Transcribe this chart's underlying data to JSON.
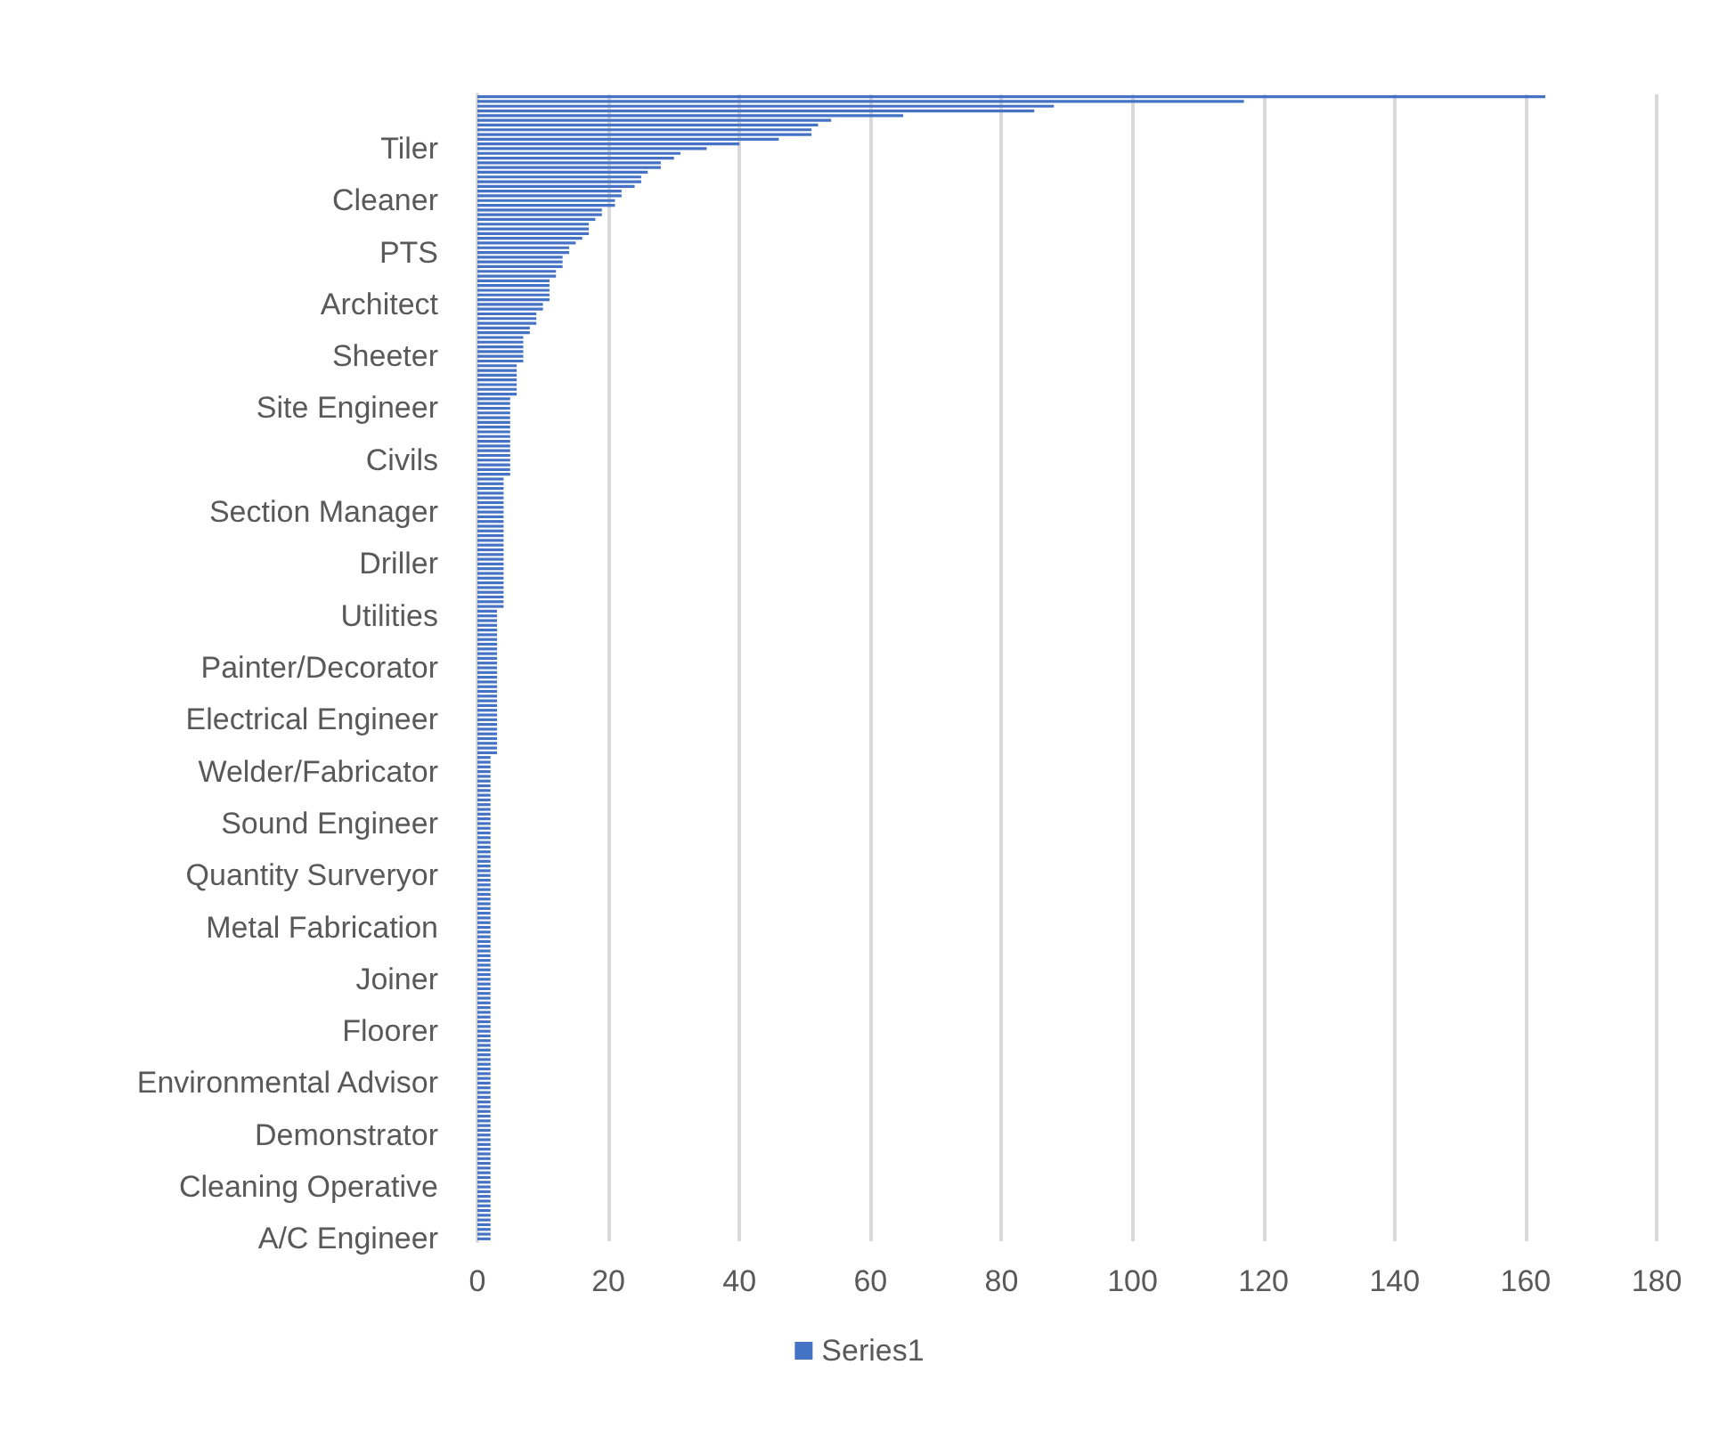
{
  "chart_data": {
    "type": "bar",
    "orientation": "horizontal",
    "categories": [
      null,
      null,
      null,
      null,
      null,
      null,
      null,
      null,
      null,
      null,
      null,
      "Tiler",
      null,
      null,
      null,
      null,
      null,
      null,
      null,
      null,
      null,
      null,
      "Cleaner",
      null,
      null,
      null,
      null,
      null,
      null,
      null,
      null,
      null,
      null,
      "PTS",
      null,
      null,
      null,
      null,
      null,
      null,
      null,
      null,
      null,
      null,
      "Architect",
      null,
      null,
      null,
      null,
      null,
      null,
      null,
      null,
      null,
      null,
      "Sheeter",
      null,
      null,
      null,
      null,
      null,
      null,
      null,
      null,
      null,
      null,
      "Site Engineer",
      null,
      null,
      null,
      null,
      null,
      null,
      null,
      null,
      null,
      null,
      "Civils",
      null,
      null,
      null,
      null,
      null,
      null,
      null,
      null,
      null,
      null,
      "Section Manager",
      null,
      null,
      null,
      null,
      null,
      null,
      null,
      null,
      null,
      null,
      "Driller",
      null,
      null,
      null,
      null,
      null,
      null,
      null,
      null,
      null,
      null,
      "Utilities",
      null,
      null,
      null,
      null,
      null,
      null,
      null,
      null,
      null,
      null,
      "Painter/Decorator",
      null,
      null,
      null,
      null,
      null,
      null,
      null,
      null,
      null,
      null,
      "Electrical Engineer",
      null,
      null,
      null,
      null,
      null,
      null,
      null,
      null,
      null,
      null,
      "Welder/Fabricator",
      null,
      null,
      null,
      null,
      null,
      null,
      null,
      null,
      null,
      null,
      "Sound Engineer",
      null,
      null,
      null,
      null,
      null,
      null,
      null,
      null,
      null,
      null,
      "Quantity Surveryor",
      null,
      null,
      null,
      null,
      null,
      null,
      null,
      null,
      null,
      null,
      "Metal Fabrication",
      null,
      null,
      null,
      null,
      null,
      null,
      null,
      null,
      null,
      null,
      "Joiner",
      null,
      null,
      null,
      null,
      null,
      null,
      null,
      null,
      null,
      null,
      "Floorer",
      null,
      null,
      null,
      null,
      null,
      null,
      null,
      null,
      null,
      null,
      "Environmental Advisor",
      null,
      null,
      null,
      null,
      null,
      null,
      null,
      null,
      null,
      null,
      "Demonstrator",
      null,
      null,
      null,
      null,
      null,
      null,
      null,
      null,
      null,
      null,
      "Cleaning Operative",
      null,
      null,
      null,
      null,
      null,
      null,
      null,
      null,
      null,
      null,
      "A/C Engineer"
    ],
    "series": [
      {
        "name": "Series1",
        "color": "#4472c4",
        "values": [
          163,
          117,
          88,
          85,
          65,
          54,
          52,
          51,
          51,
          46,
          40,
          35,
          31,
          30,
          28,
          28,
          26,
          25,
          25,
          24,
          22,
          22,
          21,
          21,
          19,
          19,
          18,
          17,
          17,
          17,
          16,
          15,
          14,
          14,
          13,
          13,
          13,
          12,
          12,
          11,
          11,
          11,
          11,
          11,
          10,
          10,
          9,
          9,
          9,
          8,
          8,
          7,
          7,
          7,
          7,
          7,
          7,
          6,
          6,
          6,
          6,
          6,
          6,
          6,
          5,
          5,
          5,
          5,
          5,
          5,
          5,
          5,
          5,
          5,
          5,
          5,
          5,
          5,
          5,
          5,
          5,
          4,
          4,
          4,
          4,
          4,
          4,
          4,
          4,
          4,
          4,
          4,
          4,
          4,
          4,
          4,
          4,
          4,
          4,
          4,
          4,
          4,
          4,
          4,
          4,
          4,
          4,
          4,
          4,
          3,
          3,
          3,
          3,
          3,
          3,
          3,
          3,
          3,
          3,
          3,
          3,
          3,
          3,
          3,
          3,
          3,
          3,
          3,
          3,
          3,
          3,
          3,
          3,
          3,
          3,
          3,
          3,
          3,
          3,
          3,
          2,
          2,
          2,
          2,
          2,
          2,
          2,
          2,
          2,
          2,
          2,
          2,
          2,
          2,
          2,
          2,
          2,
          2,
          2,
          2,
          2,
          2,
          2,
          2,
          2,
          2,
          2,
          2,
          2,
          2,
          2,
          2,
          2,
          2,
          2,
          2,
          2,
          2,
          2,
          2,
          2,
          2,
          2,
          2,
          2,
          2,
          2,
          2,
          2,
          2,
          2,
          2,
          2,
          2,
          2,
          2,
          2,
          2,
          2,
          2,
          2,
          2,
          2,
          2,
          2,
          2,
          2,
          2,
          2,
          2,
          2,
          2,
          2,
          2,
          2,
          2,
          2,
          2,
          2,
          2,
          2,
          2,
          2,
          2,
          2,
          2,
          2,
          2,
          2,
          2,
          2,
          2,
          2,
          2,
          2,
          2,
          2,
          2,
          2,
          2,
          2,
          2,
          2
        ]
      }
    ],
    "xlim": [
      0,
      180
    ],
    "xticks": [
      0,
      20,
      40,
      60,
      80,
      100,
      120,
      140,
      160,
      180
    ],
    "grid": "x",
    "legend": "bottom"
  }
}
